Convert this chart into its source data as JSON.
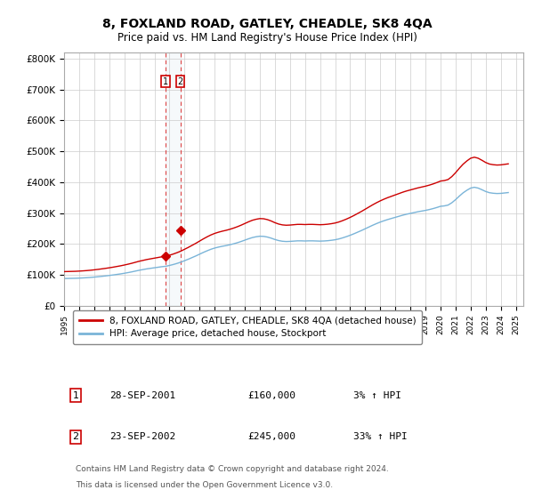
{
  "title": "8, FOXLAND ROAD, GATLEY, CHEADLE, SK8 4QA",
  "subtitle": "Price paid vs. HM Land Registry's House Price Index (HPI)",
  "title_fontsize": 10,
  "subtitle_fontsize": 8.5,
  "ylabel_ticks": [
    "£0",
    "£100K",
    "£200K",
    "£300K",
    "£400K",
    "£500K",
    "£600K",
    "£700K",
    "£800K"
  ],
  "ytick_vals": [
    0,
    100000,
    200000,
    300000,
    400000,
    500000,
    600000,
    700000,
    800000
  ],
  "ylim": [
    0,
    820000
  ],
  "xlim_start": 1995.0,
  "xlim_end": 2025.5,
  "hpi_color": "#7ab4d8",
  "price_color": "#cc0000",
  "transaction_line_color": "#dd4444",
  "transaction1_x": 2001.75,
  "transaction1_y": 160000,
  "transaction1_label": "1",
  "transaction2_x": 2002.72,
  "transaction2_y": 245000,
  "transaction2_label": "2",
  "legend_line1": "8, FOXLAND ROAD, GATLEY, CHEADLE, SK8 4QA (detached house)",
  "legend_line2": "HPI: Average price, detached house, Stockport",
  "table_row1": [
    "1",
    "28-SEP-2001",
    "£160,000",
    "3% ↑ HPI"
  ],
  "table_row2": [
    "2",
    "23-SEP-2002",
    "£245,000",
    "33% ↑ HPI"
  ],
  "footer1": "Contains HM Land Registry data © Crown copyright and database right 2024.",
  "footer2": "This data is licensed under the Open Government Licence v3.0.",
  "background_color": "#ffffff",
  "plot_bg_color": "#ffffff",
  "grid_color": "#cccccc",
  "hpi_base_1995": 88000,
  "hpi_index": [
    100.0,
    100.3,
    100.6,
    100.9,
    101.5,
    102.2,
    103.0,
    104.0,
    105.2,
    106.5,
    108.0,
    109.5,
    111.2,
    113.0,
    115.0,
    117.0,
    119.3,
    121.8,
    124.5,
    127.5,
    130.5,
    133.0,
    135.5,
    137.5,
    139.5,
    141.5,
    143.5,
    145.0,
    148.0,
    151.5,
    155.5,
    160.0,
    165.5,
    171.0,
    177.0,
    183.0,
    189.5,
    196.0,
    202.0,
    207.5,
    212.0,
    215.5,
    218.5,
    221.0,
    224.0,
    227.5,
    231.5,
    236.0,
    241.0,
    246.0,
    250.5,
    253.5,
    255.5,
    255.0,
    252.5,
    248.5,
    243.5,
    239.5,
    237.0,
    236.0,
    236.5,
    237.5,
    238.5,
    238.5,
    238.0,
    238.5,
    238.5,
    238.0,
    237.5,
    238.0,
    239.0,
    240.5,
    242.5,
    245.5,
    249.5,
    254.0,
    259.0,
    264.5,
    270.5,
    276.5,
    283.0,
    289.5,
    296.0,
    302.0,
    307.5,
    312.5,
    317.0,
    321.0,
    325.0,
    329.0,
    333.0,
    336.5,
    339.5,
    342.5,
    345.5,
    348.0,
    350.5,
    353.5,
    357.0,
    361.0,
    365.5,
    367.0,
    370.0,
    378.5,
    390.0,
    403.0,
    415.0,
    424.5,
    432.5,
    435.5,
    432.5,
    426.5,
    420.0,
    415.5,
    413.5,
    412.5,
    413.0,
    414.5,
    416.0
  ],
  "price_index_scale": 245000,
  "price_index_base_at_t2": 160.0,
  "hpi_xticks": [
    1995,
    1996,
    1997,
    1998,
    1999,
    2000,
    2001,
    2002,
    2003,
    2004,
    2005,
    2006,
    2007,
    2008,
    2009,
    2010,
    2011,
    2012,
    2013,
    2014,
    2015,
    2016,
    2017,
    2018,
    2019,
    2020,
    2021,
    2022,
    2023,
    2024,
    2025
  ]
}
